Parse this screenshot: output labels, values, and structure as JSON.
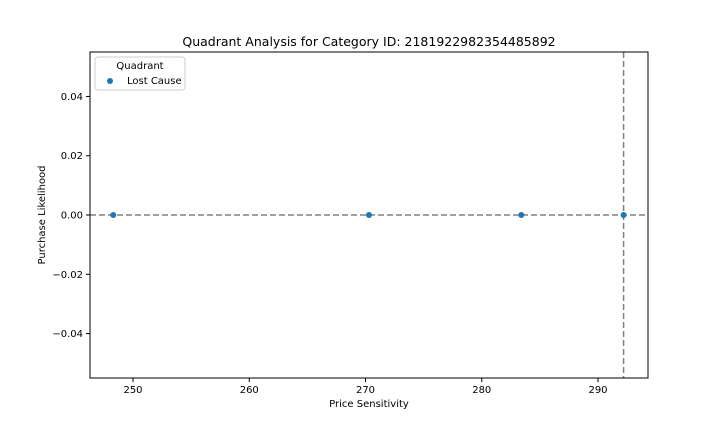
{
  "chart_data": {
    "type": "scatter",
    "title": "Quadrant Analysis for Category ID: 2181922982354485892",
    "xlabel": "Price Sensitivity",
    "ylabel": "Purchase Likelihood",
    "xlim": [
      246.3,
      294.3
    ],
    "ylim": [
      -0.055,
      0.055
    ],
    "x_ticks": [
      250,
      260,
      270,
      280,
      290
    ],
    "x_tick_labels": [
      "250",
      "260",
      "270",
      "280",
      "290"
    ],
    "y_ticks": [
      0.04,
      0.02,
      0.0,
      -0.02,
      -0.04
    ],
    "y_tick_labels": [
      "0.04",
      "0.02",
      "0.00",
      "−0.02",
      "−0.04"
    ],
    "series": [
      {
        "name": "Lost Cause",
        "color": "#1f77b4",
        "points": [
          {
            "x": 248.3,
            "y": 0.0
          },
          {
            "x": 270.3,
            "y": 0.0
          },
          {
            "x": 283.4,
            "y": 0.0
          },
          {
            "x": 292.2,
            "y": 0.0
          }
        ]
      }
    ],
    "reference_lines": {
      "horizontal_y": 0.0,
      "vertical_x": 292.2,
      "style": "dashed",
      "color": "#808080"
    },
    "legend": {
      "title": "Quadrant",
      "placement": "top-left"
    },
    "grid": false
  }
}
